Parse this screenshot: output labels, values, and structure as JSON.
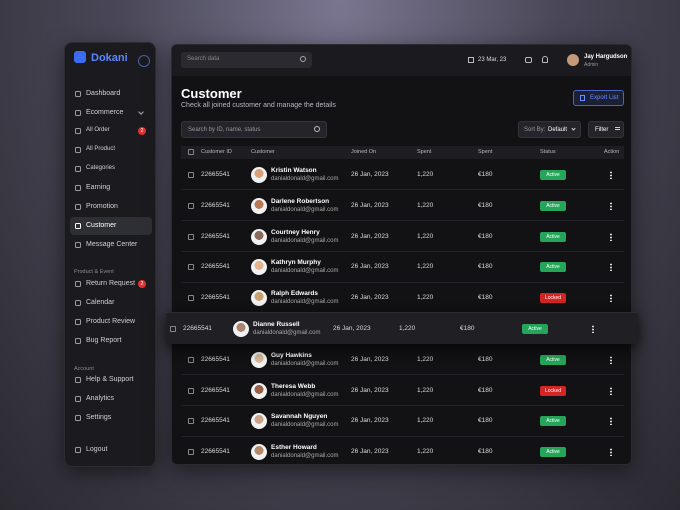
{
  "sidebar": {
    "brand": "Dokani",
    "groups": [
      {
        "items": [
          {
            "label": "Dashboard"
          },
          {
            "label": "Ecommerce"
          },
          {
            "label": "All Order",
            "badge": "2"
          },
          {
            "label": "All Product"
          },
          {
            "label": "Categories"
          },
          {
            "label": "Earning"
          },
          {
            "label": "Promotion"
          },
          {
            "label": "Customer"
          },
          {
            "label": "Message Center"
          }
        ]
      },
      {
        "title": "Product & Event",
        "items": [
          {
            "label": "Return Request",
            "badge": "2"
          },
          {
            "label": "Calendar"
          },
          {
            "label": "Product Review"
          },
          {
            "label": "Bug Report"
          }
        ]
      },
      {
        "title": "Account",
        "items": [
          {
            "label": "Help & Support"
          },
          {
            "label": "Analytics"
          },
          {
            "label": "Settings"
          }
        ]
      }
    ],
    "logout": "Logout"
  },
  "topbar": {
    "search_placeholder": "Search data",
    "date": "23 Mar, 23",
    "user": {
      "name": "Jay Hargudson",
      "role": "Admin"
    }
  },
  "page": {
    "title": "Customer",
    "subtitle": "Check all joined customer and manage the details",
    "export": "Export List",
    "search_placeholder": "Search by ID, name, status",
    "sort_label": "Sort By:",
    "sort_value": "Default",
    "filter": "Filter"
  },
  "table": {
    "columns": [
      "Customer ID",
      "Customer",
      "Joined On",
      "Spent",
      "Spent",
      "Status",
      "Action"
    ],
    "rows": [
      [
        "22665541",
        "Kristin Watson",
        "danialdonald@gmail.com",
        "26 Jan, 2023",
        "1,220",
        "€180",
        "Active"
      ],
      [
        "22665541",
        "Darlene Robertson",
        "danialdonald@gmail.com",
        "26 Jan, 2023",
        "1,220",
        "€180",
        "Active"
      ],
      [
        "22665541",
        "Courtney Henry",
        "danialdonald@gmail.com",
        "26 Jan, 2023",
        "1,220",
        "€180",
        "Active"
      ],
      [
        "22665541",
        "Kathryn Murphy",
        "danialdonald@gmail.com",
        "26 Jan, 2023",
        "1,220",
        "€180",
        "Active"
      ],
      [
        "22665541",
        "Ralph Edwards",
        "danialdonald@gmail.com",
        "26 Jan, 2023",
        "1,220",
        "€180",
        "Locked"
      ],
      [
        "22665541",
        "Dianne Russell",
        "danialdonald@gmail.com",
        "26 Jan, 2023",
        "1,220",
        "€180",
        "Active"
      ],
      [
        "22665541",
        "Guy Hawkins",
        "danialdonald@gmail.com",
        "26 Jan, 2023",
        "1,220",
        "€180",
        "Active"
      ],
      [
        "22665541",
        "Theresa Webb",
        "danialdonald@gmail.com",
        "26 Jan, 2023",
        "1,220",
        "€180",
        "Locked"
      ],
      [
        "22665541",
        "Savannah Nguyen",
        "danialdonald@gmail.com",
        "26 Jan, 2023",
        "1,220",
        "€180",
        "Active"
      ],
      [
        "22665541",
        "Esther Howard",
        "danialdonald@gmail.com",
        "26 Jan, 2023",
        "1,220",
        "€180",
        "Active"
      ]
    ]
  }
}
